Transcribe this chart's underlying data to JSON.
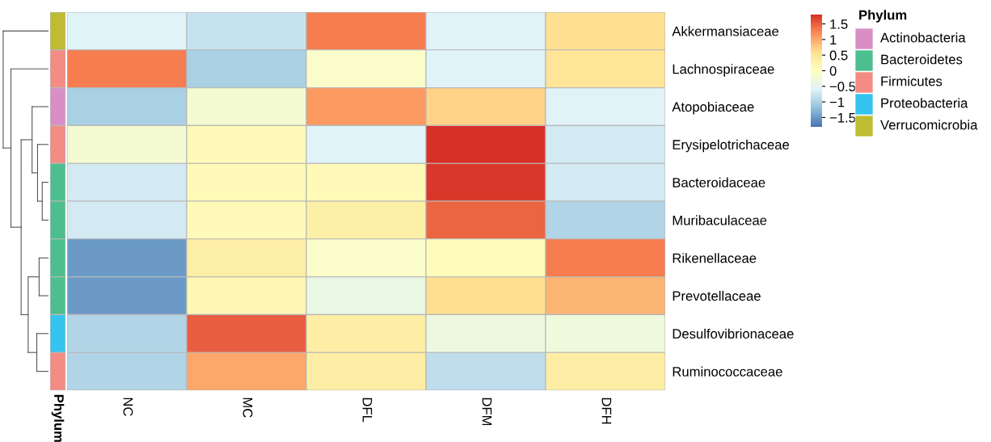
{
  "chart_data": [
    {
      "type": "heatmap",
      "categories": [
        "NC",
        "MC",
        "DFL",
        "DFM",
        "DFH"
      ],
      "y_categories": [
        "Akkermansiaceae",
        "Lachnospiraceae",
        "Atopobiaceae",
        "Erysipelotrichaceae",
        "Bacteroidaceae",
        "Muribaculaceae",
        "Rikenellaceae",
        "Prevotellaceae",
        "Desulfovibrionaceae",
        "Ruminococcaceae"
      ],
      "cells": [
        [
          -0.6,
          -0.8,
          1.3,
          -0.6,
          0.6
        ],
        [
          1.3,
          -1.0,
          -0.1,
          -0.6,
          0.5
        ],
        [
          -1.0,
          -0.2,
          1.1,
          0.7,
          -0.6
        ],
        [
          -0.2,
          0.1,
          -0.6,
          1.8,
          -0.7
        ],
        [
          -0.7,
          0.1,
          0.1,
          1.75,
          -0.7
        ],
        [
          -0.7,
          0.1,
          0.3,
          1.45,
          -0.95
        ],
        [
          -1.5,
          0.3,
          -0.1,
          0.05,
          1.3
        ],
        [
          -1.5,
          0.15,
          -0.4,
          0.6,
          0.9
        ],
        [
          -0.95,
          1.5,
          0.35,
          -0.35,
          -0.3
        ],
        [
          -0.95,
          1.0,
          0.35,
          -0.85,
          0.35
        ]
      ],
      "clim": [
        -1.8,
        1.8
      ],
      "cticks": [
        1.5,
        1,
        0.5,
        0,
        -0.5,
        -1,
        -1.5
      ]
    },
    {
      "type": "other",
      "xlabel": "Phylum",
      "legend_title": "Phylum",
      "colors": [
        "#bebc33",
        "#f48c84",
        "#d98fc6",
        "#f48c84",
        "#4dbf8f",
        "#4dbf8f",
        "#4dbf8f",
        "#4dbf8f",
        "#35c4f0",
        "#f48c84"
      ],
      "series": [
        {
          "name": "Actinobacteria",
          "color": "#d98fc6"
        },
        {
          "name": "Bacteroidetes",
          "color": "#4dbf8f"
        },
        {
          "name": "Firmicutes",
          "color": "#f48c84"
        },
        {
          "name": "Proteobacteria",
          "color": "#35c4f0"
        },
        {
          "name": "Verrucomicrobia",
          "color": "#bebc33"
        }
      ]
    }
  ]
}
